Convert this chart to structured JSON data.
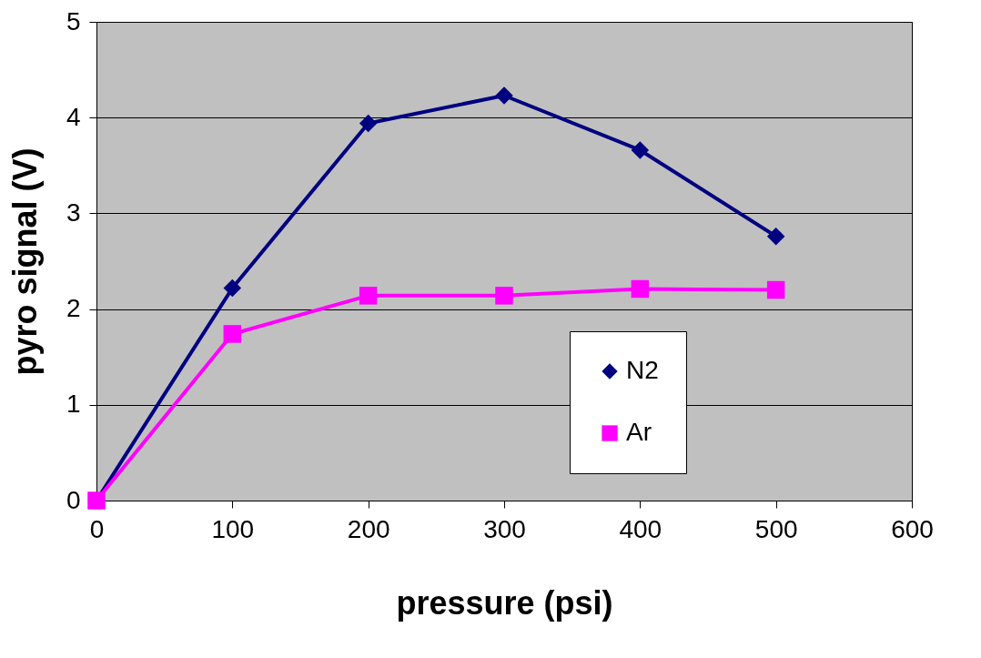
{
  "chart_data": {
    "type": "line",
    "xlabel": "pressure (psi)",
    "ylabel": "pyro signal (V)",
    "x": [
      0,
      100,
      200,
      300,
      400,
      500
    ],
    "series": [
      {
        "name": "N2",
        "color": "#000080",
        "marker": "diamond",
        "values": [
          0,
          2.22,
          3.94,
          4.23,
          3.66,
          2.76
        ]
      },
      {
        "name": "Ar",
        "color": "#ff00ff",
        "marker": "square",
        "values": [
          0,
          1.74,
          2.14,
          2.14,
          2.21,
          2.2
        ]
      }
    ],
    "xlim": [
      0,
      600
    ],
    "xticks": [
      0,
      100,
      200,
      300,
      400,
      500,
      600
    ],
    "ylim": [
      0,
      5
    ],
    "yticks": [
      0,
      1,
      2,
      3,
      4,
      5
    ],
    "grid": "y",
    "legend": "bottom right",
    "line_style": "solid"
  }
}
